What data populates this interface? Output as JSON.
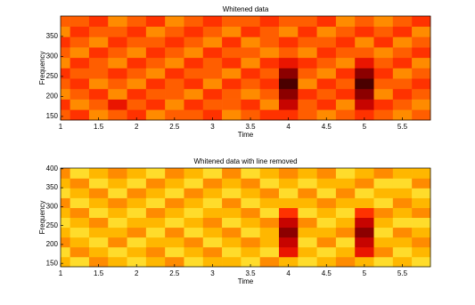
{
  "chart_data": [
    {
      "type": "heatmap",
      "title": "Whitened data",
      "x_label": "Time",
      "y_label": "Frequency",
      "x_edges": [
        1,
        1.125,
        1.375,
        1.625,
        1.875,
        2.125,
        2.375,
        2.625,
        2.875,
        3.125,
        3.375,
        3.625,
        3.875,
        4.125,
        4.375,
        4.625,
        4.875,
        5.125,
        5.375,
        5.625,
        5.87
      ],
      "y_edges": [
        141,
        167,
        193,
        219,
        245,
        271,
        297,
        323,
        349,
        375,
        401
      ],
      "z": [
        [
          5,
          4,
          6,
          5,
          4,
          6,
          5,
          5,
          4,
          6,
          5,
          4,
          4,
          5,
          6,
          5,
          4,
          5,
          6,
          5
        ],
        [
          4,
          6,
          5,
          3,
          5,
          4,
          6,
          4,
          5,
          5,
          4,
          6,
          2,
          5,
          4,
          6,
          2,
          4,
          5,
          6
        ],
        [
          6,
          5,
          4,
          6,
          4,
          5,
          5,
          6,
          4,
          5,
          6,
          5,
          1,
          4,
          5,
          4,
          1,
          6,
          4,
          5
        ],
        [
          5,
          4,
          6,
          5,
          6,
          4,
          5,
          4,
          6,
          4,
          5,
          4,
          0,
          6,
          4,
          5,
          0,
          5,
          5,
          4
        ],
        [
          4,
          5,
          5,
          4,
          5,
          6,
          4,
          5,
          5,
          6,
          4,
          5,
          1,
          5,
          6,
          4,
          1,
          4,
          6,
          5
        ],
        [
          6,
          4,
          5,
          6,
          4,
          5,
          6,
          4,
          5,
          4,
          6,
          4,
          3,
          4,
          5,
          6,
          3,
          5,
          4,
          6
        ],
        [
          5,
          6,
          4,
          5,
          6,
          4,
          5,
          6,
          4,
          5,
          5,
          6,
          5,
          6,
          4,
          5,
          5,
          6,
          5,
          4
        ],
        [
          4,
          5,
          6,
          4,
          5,
          5,
          4,
          5,
          6,
          4,
          6,
          5,
          4,
          5,
          5,
          4,
          6,
          4,
          6,
          5
        ],
        [
          6,
          4,
          5,
          5,
          4,
          6,
          5,
          4,
          5,
          6,
          4,
          5,
          6,
          4,
          6,
          5,
          4,
          5,
          4,
          6
        ],
        [
          5,
          5,
          4,
          6,
          5,
          4,
          6,
          5,
          4,
          5,
          5,
          4,
          5,
          5,
          4,
          6,
          5,
          6,
          5,
          4
        ]
      ],
      "clim": [
        0,
        9
      ],
      "colormap": [
        "#4a0000",
        "#c00000",
        "#ff2000",
        "#ff7000",
        "#ffc000",
        "#ffff60"
      ],
      "xlim": [
        1,
        5.87
      ],
      "ylim": [
        141,
        401
      ],
      "xticks": [
        1,
        1.5,
        2,
        2.5,
        3,
        3.5,
        4,
        4.5,
        5,
        5.5
      ],
      "yticks": [
        150,
        200,
        250,
        300,
        350
      ]
    },
    {
      "type": "heatmap",
      "title": "Whitened data with line removed",
      "x_label": "Time",
      "y_label": "Frequency",
      "x_edges": [
        1,
        1.125,
        1.375,
        1.625,
        1.875,
        2.125,
        2.375,
        2.625,
        2.875,
        3.125,
        3.375,
        3.625,
        3.875,
        4.125,
        4.375,
        4.625,
        4.875,
        5.125,
        5.375,
        5.625,
        5.87
      ],
      "y_edges": [
        141,
        167,
        193,
        219,
        245,
        271,
        297,
        323,
        349,
        375,
        402
      ],
      "z": [
        [
          7,
          8,
          6,
          7,
          8,
          7,
          6,
          8,
          7,
          7,
          8,
          6,
          7,
          8,
          7,
          6,
          7,
          8,
          7,
          8
        ],
        [
          8,
          6,
          7,
          8,
          7,
          6,
          8,
          7,
          6,
          8,
          7,
          8,
          3,
          7,
          8,
          7,
          3,
          6,
          8,
          7
        ],
        [
          6,
          7,
          8,
          6,
          8,
          7,
          7,
          6,
          8,
          7,
          6,
          7,
          2,
          8,
          6,
          8,
          2,
          7,
          7,
          6
        ],
        [
          7,
          8,
          7,
          7,
          6,
          8,
          6,
          8,
          7,
          6,
          8,
          7,
          1,
          7,
          7,
          6,
          1,
          8,
          6,
          7
        ],
        [
          8,
          7,
          6,
          8,
          7,
          7,
          8,
          7,
          6,
          8,
          7,
          6,
          2,
          6,
          8,
          7,
          2,
          7,
          8,
          8
        ],
        [
          7,
          6,
          8,
          7,
          8,
          6,
          7,
          8,
          7,
          7,
          6,
          8,
          4,
          8,
          7,
          8,
          4,
          6,
          7,
          6
        ],
        [
          6,
          8,
          7,
          6,
          7,
          8,
          6,
          7,
          8,
          6,
          8,
          7,
          7,
          7,
          6,
          7,
          7,
          8,
          6,
          7
        ],
        [
          8,
          7,
          6,
          8,
          6,
          7,
          8,
          6,
          7,
          8,
          7,
          6,
          8,
          6,
          8,
          6,
          8,
          7,
          7,
          8
        ],
        [
          7,
          6,
          8,
          7,
          8,
          6,
          7,
          8,
          6,
          7,
          6,
          8,
          7,
          8,
          7,
          7,
          6,
          8,
          8,
          6
        ],
        [
          6,
          8,
          7,
          6,
          7,
          8,
          6,
          7,
          8,
          6,
          8,
          7,
          6,
          7,
          6,
          8,
          7,
          6,
          7,
          7
        ]
      ],
      "clim": [
        0,
        9
      ],
      "colormap": [
        "#4a0000",
        "#c00000",
        "#ff2000",
        "#ff7000",
        "#ffc000",
        "#ffff60"
      ],
      "xlim": [
        1,
        5.87
      ],
      "ylim": [
        141,
        402
      ],
      "xticks": [
        1,
        1.5,
        2,
        2.5,
        3,
        3.5,
        4,
        4.5,
        5,
        5.5
      ],
      "yticks": [
        150,
        200,
        250,
        300,
        350,
        400
      ]
    }
  ]
}
